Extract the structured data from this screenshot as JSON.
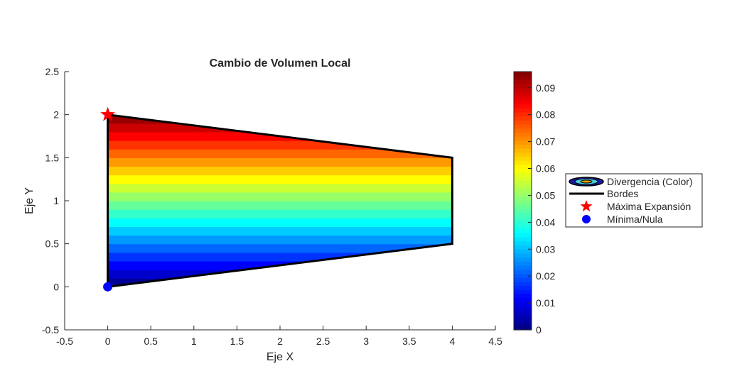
{
  "chart_data": {
    "type": "heatmap",
    "title": "Cambio de Volumen Local",
    "xlabel": "Eje X",
    "ylabel": "Eje Y",
    "xlim": [
      -0.5,
      4.5
    ],
    "ylim": [
      -0.5,
      2.5
    ],
    "xticks": [
      "-0.5",
      "0",
      "0.5",
      "1",
      "1.5",
      "2",
      "2.5",
      "3",
      "3.5",
      "4",
      "4.5"
    ],
    "yticks": [
      "-0.5",
      "0",
      "0.5",
      "1",
      "1.5",
      "2",
      "2.5"
    ],
    "grid": false,
    "colormap": "jet",
    "field": "divergence increases linearly with y (approx 0.048 * y)",
    "region": {
      "vertices": [
        [
          0,
          0
        ],
        [
          4,
          0.5
        ],
        [
          4,
          1.5
        ],
        [
          0,
          2
        ]
      ]
    },
    "contour_levels": 20,
    "colorbar": {
      "range": [
        0,
        0.096
      ],
      "ticks": [
        "0",
        "0.01",
        "0.02",
        "0.03",
        "0.04",
        "0.05",
        "0.06",
        "0.07",
        "0.08",
        "0.09"
      ]
    },
    "series": [
      {
        "name": "Divergencia (Color)",
        "kind": "contourf"
      },
      {
        "name": "Bordes",
        "kind": "line",
        "color": "#000000",
        "x": [
          0,
          4,
          4,
          0,
          0
        ],
        "y": [
          0,
          0.5,
          1.5,
          2,
          0
        ]
      },
      {
        "name": "Máxima Expansión",
        "kind": "marker",
        "marker": "star",
        "color": "#ff0000",
        "x": [
          0
        ],
        "y": [
          2
        ]
      },
      {
        "name": "Mínima/Nula",
        "kind": "marker",
        "marker": "circle",
        "color": "#0000ff",
        "x": [
          0
        ],
        "y": [
          0
        ]
      }
    ],
    "legend_position": "outside-right"
  }
}
